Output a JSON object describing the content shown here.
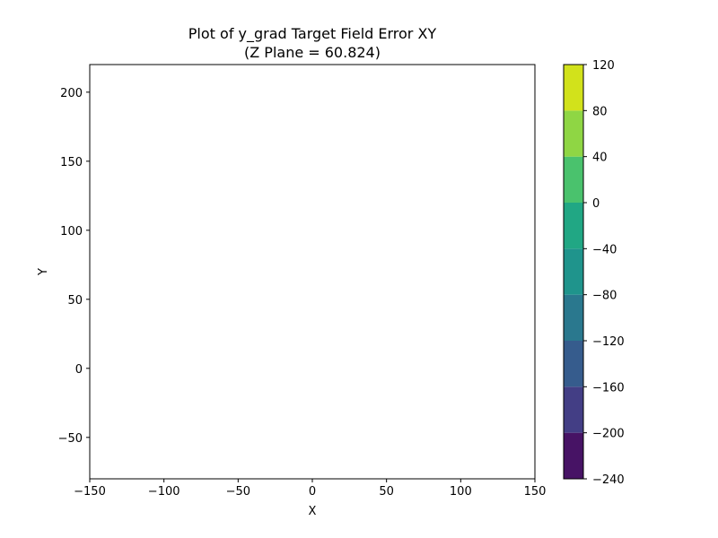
{
  "chart_data": {
    "type": "contour",
    "title_line1": "Plot of y_grad Target Field Error XY",
    "title_line2": "(Z Plane = 60.824)",
    "xlabel": "X",
    "ylabel": "Y",
    "xlim": [
      -150,
      150
    ],
    "ylim": [
      -80,
      220
    ],
    "xticks": [
      -150,
      -100,
      -50,
      0,
      50,
      100,
      150
    ],
    "yticks": [
      -50,
      0,
      50,
      100,
      150,
      200
    ],
    "xtick_labels": [
      "−150",
      "−100",
      "−50",
      "0",
      "50",
      "100",
      "150"
    ],
    "ytick_labels": [
      "−50",
      "0",
      "50",
      "100",
      "150",
      "200"
    ],
    "series": [],
    "colorbar": {
      "levels": [
        -240,
        -200,
        -160,
        -120,
        -80,
        -40,
        0,
        40,
        80,
        120
      ],
      "level_labels": [
        "−240",
        "−200",
        "−160",
        "−120",
        "−80",
        "−40",
        "0",
        "40",
        "80",
        "120"
      ],
      "colors": [
        "#471365",
        "#433e85",
        "#365c8d",
        "#2a788e",
        "#1f948c",
        "#21a784",
        "#4ac26d",
        "#8fd644",
        "#d2e21b"
      ]
    }
  }
}
